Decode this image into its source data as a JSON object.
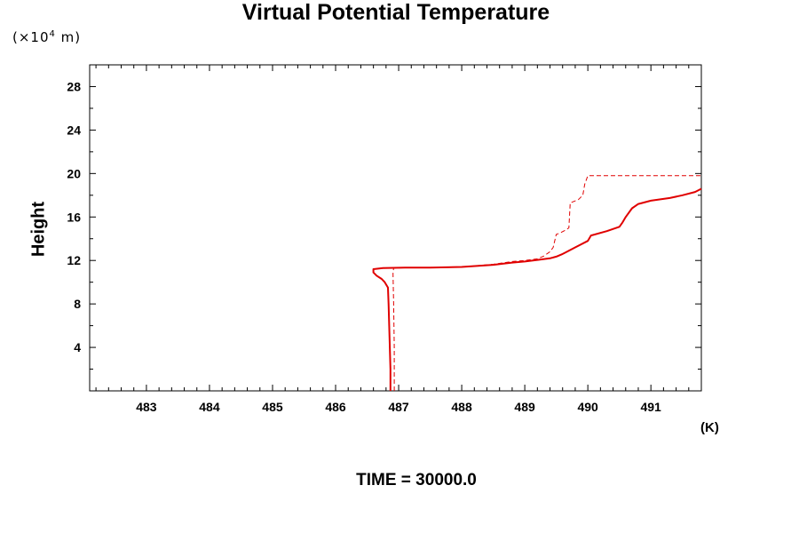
{
  "chart_data": {
    "type": "line",
    "title": "Virtual Potential Temperature",
    "ylabel": "Height",
    "yunit_label": "(×10",
    "yunit_exp": "4",
    "yunit_suffix": " m)",
    "xunit_label": "(K)",
    "footer": "TIME = 30000.0",
    "xlim": [
      482.1,
      491.8
    ],
    "ylim": [
      0,
      30
    ],
    "xticks": [
      483,
      484,
      485,
      486,
      487,
      488,
      489,
      490,
      491
    ],
    "yticks": [
      4,
      8,
      12,
      16,
      20,
      24,
      28
    ],
    "colors": {
      "line": "#e00000",
      "axis": "#000000"
    },
    "series": [
      {
        "style": "solid",
        "x": [
          486.87,
          486.87,
          486.86,
          486.85,
          486.84,
          486.83,
          486.78,
          486.73,
          486.65,
          486.6,
          486.6,
          486.75,
          487.1,
          487.5,
          488.0,
          488.5,
          488.8,
          489.0,
          489.2,
          489.4,
          489.5,
          489.6,
          489.8,
          490.0,
          490.05,
          490.3,
          490.5,
          490.55,
          490.6,
          490.7,
          490.8,
          491.0,
          491.3,
          491.5,
          491.7,
          491.8
        ],
        "y": [
          0,
          2.0,
          4.0,
          6.0,
          8.0,
          9.5,
          10.0,
          10.3,
          10.6,
          10.9,
          11.2,
          11.3,
          11.35,
          11.35,
          11.4,
          11.6,
          11.8,
          11.9,
          12.05,
          12.2,
          12.35,
          12.6,
          13.2,
          13.8,
          14.3,
          14.7,
          15.1,
          15.5,
          16.0,
          16.8,
          17.2,
          17.5,
          17.75,
          18.0,
          18.3,
          18.6
        ]
      },
      {
        "style": "dashed",
        "x": [
          486.93,
          486.93,
          486.92,
          486.91,
          486.92,
          487.2,
          487.5,
          488.0,
          488.5,
          488.8,
          489.0,
          489.2,
          489.3,
          489.4,
          489.45,
          489.5,
          489.55,
          489.65,
          489.7,
          489.72,
          489.85,
          489.92,
          489.95,
          490.0,
          490.2,
          490.5,
          491.0,
          491.5,
          491.8
        ],
        "y": [
          0,
          4.0,
          8.0,
          10.8,
          11.3,
          11.35,
          11.35,
          11.4,
          11.65,
          11.9,
          12.0,
          12.15,
          12.4,
          12.8,
          13.2,
          14.4,
          14.5,
          14.8,
          15.0,
          17.3,
          17.6,
          18.0,
          19.0,
          19.8,
          19.8,
          19.8,
          19.8,
          19.8,
          19.8
        ]
      }
    ]
  }
}
